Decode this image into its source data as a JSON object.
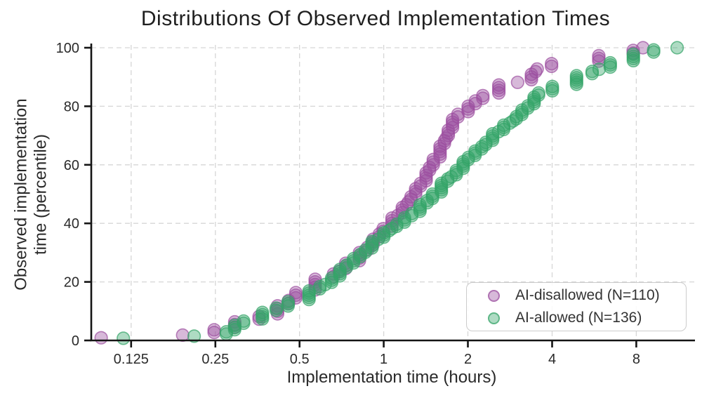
{
  "title": "Distributions Of Observed Implementation Times",
  "axes": {
    "x_label": "Implementation time (hours)",
    "y_label_line1": "Observed implementation",
    "y_label_line2": "time (percentile)"
  },
  "legend": {
    "items": [
      {
        "label": "AI-disallowed (N=110)",
        "color": "#9C4F9F"
      },
      {
        "label": "AI-allowed (N=136)",
        "color": "#35A468"
      }
    ]
  },
  "colors": {
    "purple": "#9C4F9F",
    "green": "#35A468",
    "grid": "#d6d6d6",
    "spine": "#151515",
    "text": "#2a2a2a"
  },
  "chart_data": {
    "type": "scatter",
    "subtype": "empirical-cdf",
    "title": "Distributions Of Observed Implementation Times",
    "xlabel": "Implementation time (hours)",
    "ylabel": "Observed implementation time (percentile)",
    "x_scale": "log2",
    "grid": true,
    "legend_position": "lower right",
    "xlim": [
      0.09,
      12.6
    ],
    "ylim": [
      0,
      100
    ],
    "x_ticks": [
      0.125,
      0.25,
      0.5,
      1,
      2,
      4,
      8
    ],
    "x_tick_labels": [
      "0.125",
      "0.25",
      "0.5",
      "1",
      "2",
      "4",
      "8"
    ],
    "y_ticks": [
      0,
      20,
      40,
      60,
      80,
      100
    ],
    "marker": {
      "radius": 8.8,
      "fill_opacity": 0.4,
      "stroke_opacity": 0.7,
      "stroke_width": 1.6
    },
    "cluster_pattern": [
      1,
      1,
      2,
      3,
      2,
      4,
      2,
      3,
      5,
      2,
      1,
      3,
      4,
      2,
      3,
      2,
      2,
      4,
      1,
      3
    ],
    "series": [
      {
        "name": "AI-disallowed",
        "n": 110,
        "color": "#9C4F9F",
        "quantiles_percentile_hours": [
          [
            0.9,
            0.097
          ],
          [
            1.8,
            0.19
          ],
          [
            2.7,
            0.245
          ],
          [
            3.6,
            0.25
          ],
          [
            4.5,
            0.26
          ],
          [
            5.5,
            0.295
          ],
          [
            6.4,
            0.31
          ],
          [
            7.3,
            0.35
          ],
          [
            9,
            0.385
          ],
          [
            11,
            0.43
          ],
          [
            13,
            0.455
          ],
          [
            14.5,
            0.47
          ],
          [
            16.4,
            0.5
          ],
          [
            18,
            0.55
          ],
          [
            20,
            0.585
          ],
          [
            21,
            0.63
          ],
          [
            23,
            0.68
          ],
          [
            25,
            0.72
          ],
          [
            27,
            0.77
          ],
          [
            29,
            0.83
          ],
          [
            31,
            0.87
          ],
          [
            33,
            0.9
          ],
          [
            35,
            0.95
          ],
          [
            38,
            1.0
          ],
          [
            40,
            1.06
          ],
          [
            43,
            1.13
          ],
          [
            46,
            1.2
          ],
          [
            50,
            1.28
          ],
          [
            53,
            1.35
          ],
          [
            56,
            1.42
          ],
          [
            60,
            1.48
          ],
          [
            63,
            1.56
          ],
          [
            66,
            1.62
          ],
          [
            69,
            1.67
          ],
          [
            72,
            1.72
          ],
          [
            74,
            1.76
          ],
          [
            76.5,
            1.82
          ],
          [
            79,
            2.0
          ],
          [
            81,
            2.1
          ],
          [
            83,
            2.25
          ],
          [
            84.5,
            2.35
          ],
          [
            85.5,
            2.5
          ],
          [
            86.5,
            2.7
          ],
          [
            88,
            2.95
          ],
          [
            89,
            3.3
          ],
          [
            91,
            3.45
          ],
          [
            93,
            3.55
          ],
          [
            94,
            3.9
          ],
          [
            95,
            4.9
          ],
          [
            96,
            5.5
          ],
          [
            97,
            6.6
          ],
          [
            98,
            7.3
          ],
          [
            99,
            8.1
          ],
          [
            100,
            8.45
          ]
        ]
      },
      {
        "name": "AI-allowed",
        "n": 136,
        "color": "#35A468",
        "quantiles_percentile_hours": [
          [
            0.7,
            0.114
          ],
          [
            1.5,
            0.215
          ],
          [
            2.2,
            0.27
          ],
          [
            3.7,
            0.285
          ],
          [
            5,
            0.3
          ],
          [
            6.6,
            0.32
          ],
          [
            8,
            0.36
          ],
          [
            9.6,
            0.39
          ],
          [
            11,
            0.42
          ],
          [
            12.5,
            0.455
          ],
          [
            14,
            0.5
          ],
          [
            15.4,
            0.54
          ],
          [
            16.9,
            0.565
          ],
          [
            18.4,
            0.6
          ],
          [
            20,
            0.64
          ],
          [
            22,
            0.68
          ],
          [
            24,
            0.71
          ],
          [
            26,
            0.75
          ],
          [
            28,
            0.8
          ],
          [
            30,
            0.85
          ],
          [
            32,
            0.89
          ],
          [
            34,
            0.94
          ],
          [
            36,
            1.0
          ],
          [
            38,
            1.06
          ],
          [
            40,
            1.14
          ],
          [
            42,
            1.22
          ],
          [
            44,
            1.3
          ],
          [
            46,
            1.38
          ],
          [
            48,
            1.45
          ],
          [
            50,
            1.52
          ],
          [
            52,
            1.6
          ],
          [
            55,
            1.7
          ],
          [
            57,
            1.8
          ],
          [
            59,
            1.9
          ],
          [
            61,
            1.95
          ],
          [
            63,
            2.05
          ],
          [
            65,
            2.2
          ],
          [
            67,
            2.3
          ],
          [
            69,
            2.42
          ],
          [
            71,
            2.55
          ],
          [
            73,
            2.7
          ],
          [
            75,
            2.9
          ],
          [
            77,
            3.05
          ],
          [
            79,
            3.2
          ],
          [
            81,
            3.4
          ],
          [
            83,
            3.5
          ],
          [
            84.5,
            3.6
          ],
          [
            86,
            4.0
          ],
          [
            87,
            4.3
          ],
          [
            88,
            4.6
          ],
          [
            89,
            4.9
          ],
          [
            90,
            5.1
          ],
          [
            91,
            5.4
          ],
          [
            92,
            5.7
          ],
          [
            93,
            6.0
          ],
          [
            94,
            6.4
          ],
          [
            95,
            6.9
          ],
          [
            96,
            7.4
          ],
          [
            97,
            8.0
          ],
          [
            98,
            8.6
          ],
          [
            99,
            9.3
          ],
          [
            100,
            11.2
          ]
        ]
      }
    ]
  }
}
